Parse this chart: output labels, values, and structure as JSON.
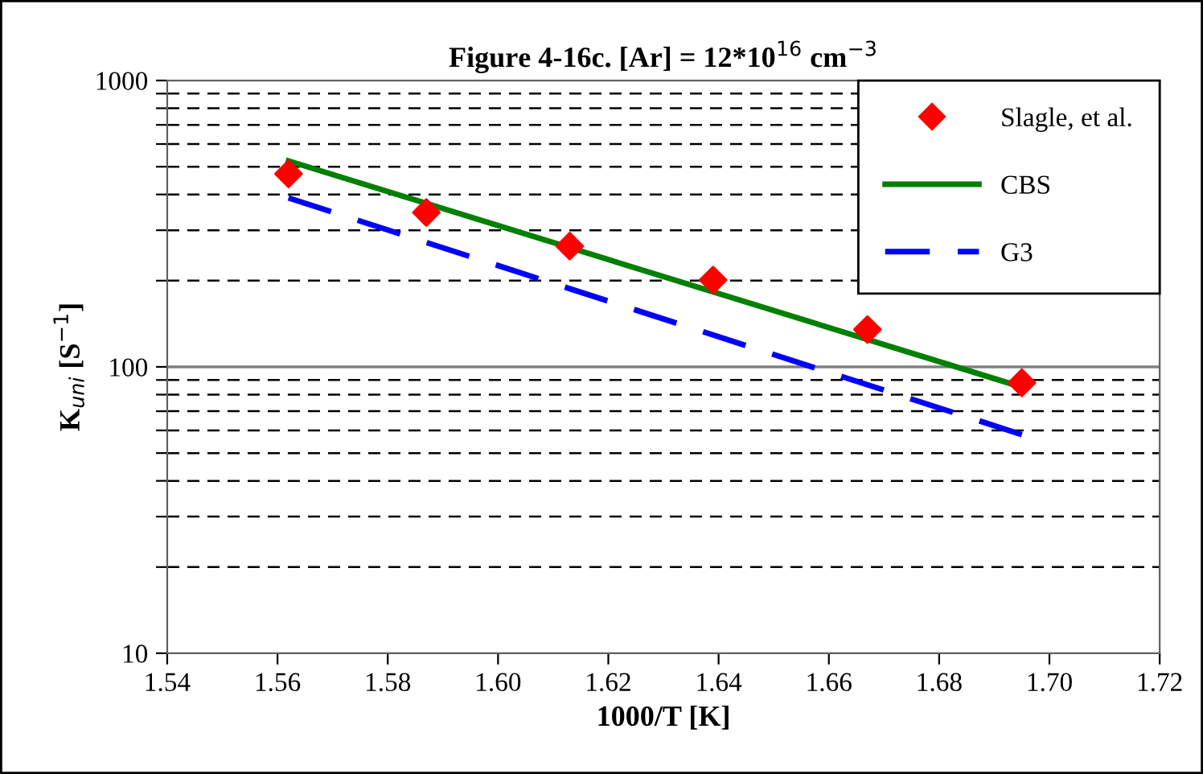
{
  "chart_data": {
    "type": "scatter",
    "title": "Figure 4-16c. [Ar] = 12*10$^{16}$ cm$^{−3}$",
    "xlabel": "1000/T [K]",
    "ylabel": "K$_{uni}$ [S$^{−1}$]",
    "series": [
      {
        "name": "Slagle, et al.",
        "color": "#ff0000",
        "marker": "diamond",
        "x": [
          1.562,
          1.587,
          1.613,
          1.639,
          1.667,
          1.695
        ],
        "values": [
          472,
          346,
          264,
          201,
          135,
          88
        ]
      },
      {
        "name": "CBS",
        "type": "line",
        "color": "#008000",
        "line_style": "solid",
        "x": [
          1.562,
          1.695
        ],
        "values": [
          524,
          85
        ]
      },
      {
        "name": "G3",
        "type": "line",
        "color": "#0000ff",
        "line_style": "dashed",
        "x": [
          1.562,
          1.695
        ],
        "values": [
          389,
          58
        ]
      }
    ],
    "log": "y",
    "xlim": [
      1.54,
      1.72
    ],
    "xticks": [
      1.54,
      1.56,
      1.58,
      {
        "value": 1.6,
        "label": "1.60"
      },
      1.62,
      1.64,
      1.66,
      1.68,
      {
        "value": 1.7,
        "label": "1.70"
      },
      1.72
    ],
    "ylim": [
      10,
      1000
    ],
    "yticks": [
      10,
      {
        "value": 20,
        "label": null
      },
      {
        "value": 30,
        "label": null
      },
      {
        "value": 40,
        "label": null
      },
      {
        "value": 50,
        "label": null
      },
      {
        "value": 60,
        "label": null
      },
      {
        "value": 70,
        "label": null
      },
      {
        "value": 80,
        "label": null
      },
      {
        "value": 90,
        "label": null
      },
      100,
      {
        "value": 200,
        "label": null
      },
      {
        "value": 300,
        "label": null
      },
      {
        "value": 400,
        "label": null
      },
      {
        "value": 500,
        "label": null
      },
      {
        "value": 600,
        "label": null
      },
      {
        "value": 700,
        "label": null
      },
      {
        "value": 800,
        "label": null
      },
      {
        "value": 900,
        "label": null
      },
      1000
    ],
    "grid": "y",
    "ref_lines": [
      {
        "axis": "y",
        "value": 100,
        "color": "#808080",
        "line_style": "solid"
      }
    ],
    "legend": "top right"
  }
}
